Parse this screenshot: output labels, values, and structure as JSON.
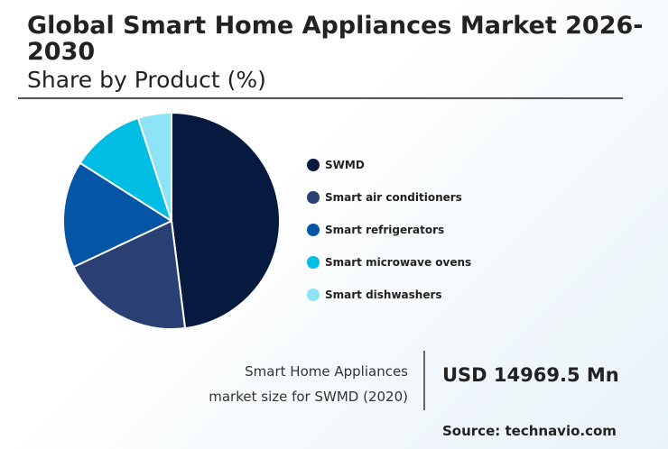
{
  "header": {
    "title": "Global Smart Home Appliances Market 2026-2030",
    "subtitle": "Share by Product (%)"
  },
  "chart_data": {
    "type": "pie",
    "title": "Global Smart Home Appliances Market 2026-2030",
    "subtitle": "Share by Product (%)",
    "legend_position": "right",
    "categories": [
      "SWMD",
      "Smart air conditioners",
      "Smart refrigerators",
      "Smart microwave ovens",
      "Smart dishwashers"
    ],
    "values": [
      48,
      20,
      16,
      11,
      5
    ],
    "colors": [
      "#061a40",
      "#2a3f73",
      "#0555a6",
      "#00bde3",
      "#8ee2f5"
    ]
  },
  "stat": {
    "label_line1": "Smart Home Appliances",
    "label_line2": "market size for SWMD (2020)",
    "value": "USD 14969.5 Mn"
  },
  "footer": {
    "source": "Source: technavio.com"
  }
}
